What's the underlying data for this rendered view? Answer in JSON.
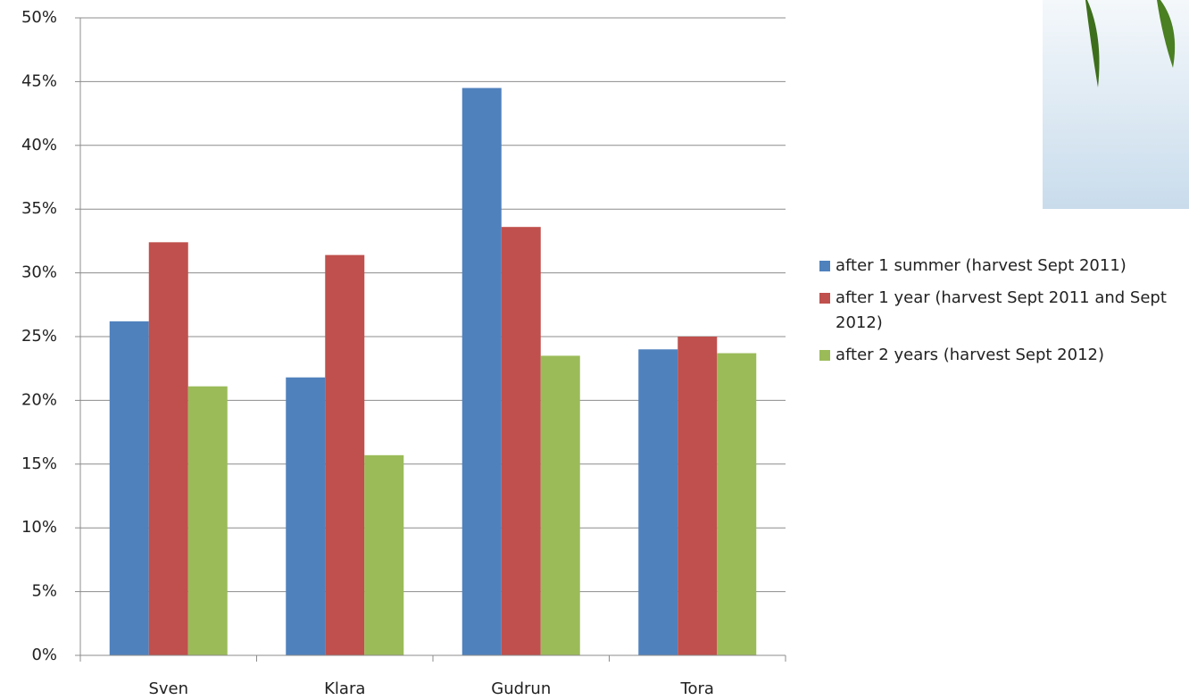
{
  "chart_data": {
    "type": "bar",
    "categories": [
      "Sven",
      "Klara",
      "Gudrun",
      "Tora"
    ],
    "series": [
      {
        "name": "after 1 summer (harvest Sept 2011)",
        "color": "#4f81bd",
        "values": [
          26.2,
          21.8,
          44.5,
          24.0
        ]
      },
      {
        "name": "after 1 year (harvest Sept 2011 and Sept 2012)",
        "color": "#c0504d",
        "values": [
          32.4,
          31.4,
          33.6,
          25.0
        ]
      },
      {
        "name": "after 2 years (harvest Sept 2012)",
        "color": "#9bbb59",
        "values": [
          21.1,
          15.7,
          23.5,
          23.7
        ]
      }
    ],
    "ylim": [
      0,
      50
    ],
    "yticks": [
      {
        "value": 0,
        "label": "0%"
      },
      {
        "value": 5,
        "label": "5%"
      },
      {
        "value": 10,
        "label": "10%"
      },
      {
        "value": 15,
        "label": "15%"
      },
      {
        "value": 20,
        "label": "20%"
      },
      {
        "value": 25,
        "label": "25%"
      },
      {
        "value": 30,
        "label": "30%"
      },
      {
        "value": 35,
        "label": "35%"
      },
      {
        "value": 40,
        "label": "40%"
      },
      {
        "value": 45,
        "label": "45%"
      },
      {
        "value": 50,
        "label": "50%"
      }
    ],
    "grid": true
  }
}
